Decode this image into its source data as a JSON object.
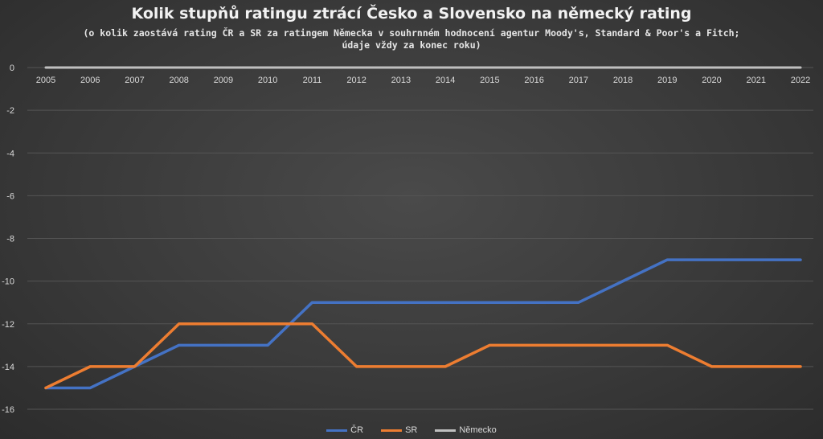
{
  "chart_data": {
    "type": "line",
    "title": "Kolik stupňů ratingu ztrácí Česko a Slovensko na německý rating",
    "subtitle": "(o kolik zaostává rating ČR a SR za ratingem Německa v souhrnném hodnocení agentur Moody's, Standard & Poor's a Fitch;  údaje vždy za konec roku)",
    "categories": [
      "2005",
      "2006",
      "2007",
      "2008",
      "2009",
      "2010",
      "2011",
      "2012",
      "2013",
      "2014",
      "2015",
      "2016",
      "2017",
      "2018",
      "2019",
      "2020",
      "2021",
      "2022"
    ],
    "y_ticks": [
      "0",
      "-2",
      "-4",
      "-6",
      "-8",
      "-10",
      "-12",
      "-14",
      "-16"
    ],
    "ylim": [
      -16,
      0
    ],
    "grid": true,
    "legend_position": "bottom",
    "series": [
      {
        "name": "ČR",
        "color": "#4472c4",
        "values": [
          -15,
          -15,
          -14,
          -13,
          -13,
          -13,
          -11,
          -11,
          -11,
          -11,
          -11,
          -11,
          -11,
          -10,
          -9,
          -9,
          -9,
          -9
        ]
      },
      {
        "name": "SR",
        "color": "#ed7d31",
        "values": [
          -15,
          -14,
          -14,
          -12,
          -12,
          -12,
          -12,
          -14,
          -14,
          -14,
          -13,
          -13,
          -13,
          -13,
          -13,
          -14,
          -14,
          -14
        ]
      },
      {
        "name": "Německo",
        "color": "#bfbfbf",
        "values": [
          0,
          0,
          0,
          0,
          0,
          0,
          0,
          0,
          0,
          0,
          0,
          0,
          0,
          0,
          0,
          0,
          0,
          0
        ]
      }
    ]
  }
}
